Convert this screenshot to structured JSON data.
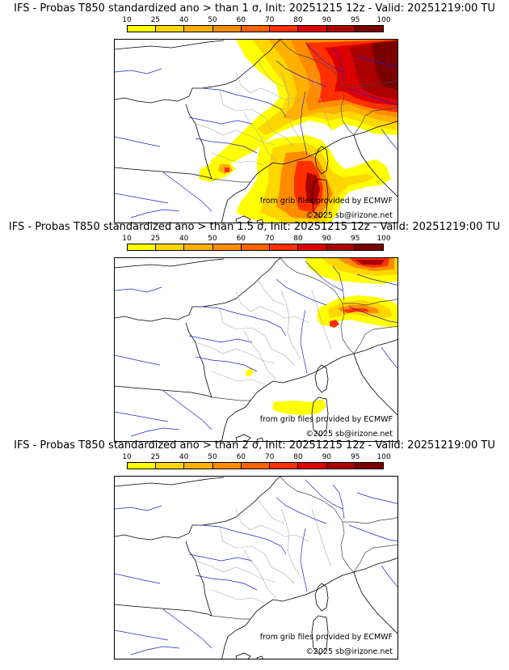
{
  "panels": [
    {
      "title": "IFS - Probas T850  standardized ano > than 1 σ, Init: 20251215 12z - Valid: 20251219:00 TU"
    },
    {
      "title": "IFS - Probas T850  standardized ano > than 1.5 σ, Init: 20251215 12z - Valid: 20251219:00 TU"
    },
    {
      "title": "IFS - Probas T850  standardized ano > than 2 σ, Init: 20251215 12z - Valid: 20251219:00 TU"
    }
  ],
  "scale": {
    "levels": [
      "10",
      "25",
      "40",
      "50",
      "60",
      "70",
      "80",
      "90",
      "95",
      "100"
    ],
    "colors": [
      "#ffff00",
      "#ffd700",
      "#ffb000",
      "#ff8c00",
      "#ff6400",
      "#ff3000",
      "#dd0000",
      "#aa0000",
      "#7a0000"
    ]
  },
  "credits": {
    "source": "from grib files provided by ECMWF",
    "copyright": "©2025 sb@irizone.net"
  },
  "map_colors": {
    "coast": "#000000",
    "rivers": "#2222cc",
    "borders": "#aaaaaa"
  }
}
